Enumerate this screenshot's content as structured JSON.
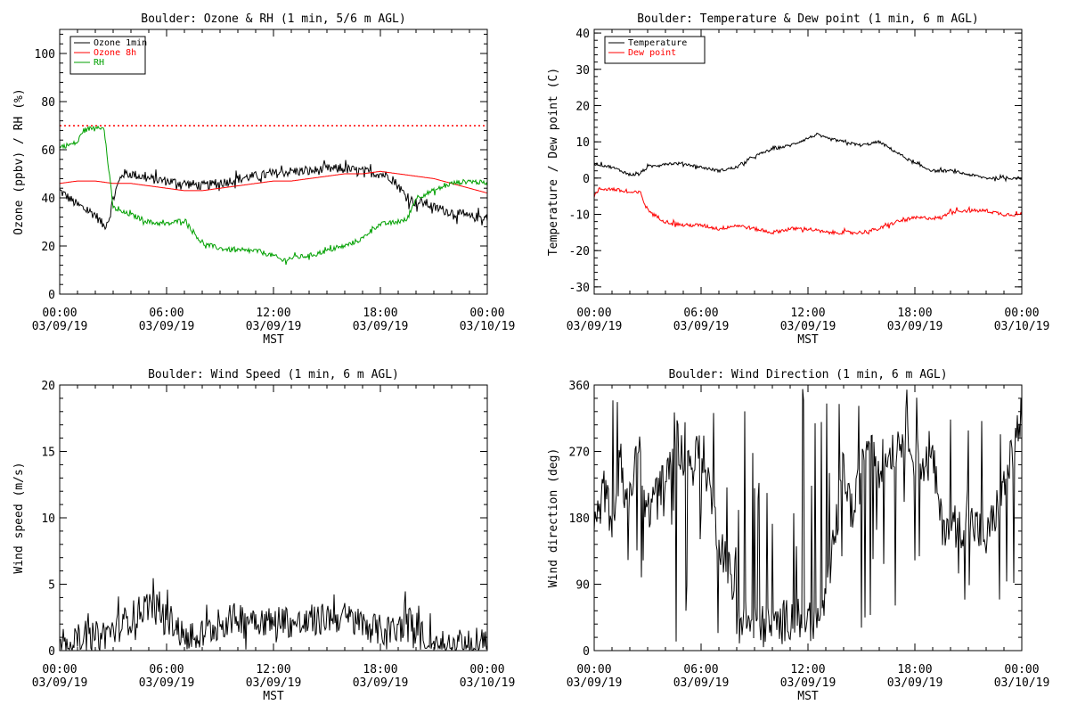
{
  "chart_data": [
    {
      "id": "ozone",
      "type": "line",
      "title": "Boulder: Ozone & RH (1 min, 5/6 m AGL)",
      "xlabel": "MST",
      "ylabel": "Ozone (ppbv) / RH (%)",
      "ylim": [
        0,
        110
      ],
      "yticks": [
        0,
        20,
        40,
        60,
        80,
        100
      ],
      "xticks": [
        {
          "h": 0,
          "time": "00:00",
          "date": "03/09/19"
        },
        {
          "h": 6,
          "time": "06:00",
          "date": "03/09/19"
        },
        {
          "h": 12,
          "time": "12:00",
          "date": "03/09/19"
        },
        {
          "h": 18,
          "time": "18:00",
          "date": "03/09/19"
        },
        {
          "h": 24,
          "time": "00:00",
          "date": "03/10/19"
        }
      ],
      "legend": {
        "placement": "top-left"
      },
      "reference_line": {
        "value": 70,
        "color": "#ff0000",
        "style": "dotted"
      },
      "series": [
        {
          "name": "Ozone 1min",
          "color": "#000000",
          "noise": 2,
          "x": [
            0,
            0.5,
            1,
            1.5,
            2,
            2.5,
            2.8,
            3,
            3.5,
            4,
            5,
            6,
            7,
            8,
            9,
            10,
            11,
            12,
            13,
            14,
            15,
            16,
            17,
            18,
            18.5,
            19,
            19.5,
            20,
            20.5,
            21,
            22,
            23,
            24
          ],
          "y": [
            43,
            40,
            37,
            35,
            33,
            28,
            32,
            40,
            50,
            50,
            48,
            47,
            46,
            45,
            46,
            48,
            49,
            50,
            51,
            51,
            52,
            52,
            51,
            50,
            49,
            45,
            40,
            38,
            38,
            36,
            34,
            32,
            32
          ]
        },
        {
          "name": "Ozone 8h",
          "color": "#ff0000",
          "noise": 0,
          "x": [
            0,
            1,
            2,
            3,
            4,
            5,
            6,
            7,
            8,
            9,
            10,
            11,
            12,
            13,
            14,
            15,
            16,
            17,
            18,
            19,
            20,
            21,
            22,
            23,
            24
          ],
          "y": [
            46,
            47,
            47,
            46,
            46,
            45,
            44,
            43,
            43,
            44,
            45,
            46,
            47,
            47,
            48,
            49,
            50,
            50,
            51,
            50,
            49,
            48,
            46,
            44,
            42
          ]
        },
        {
          "name": "RH",
          "color": "#00a000",
          "noise": 1,
          "x": [
            0,
            0.5,
            1,
            1.3,
            1.8,
            2.2,
            2.5,
            2.7,
            3,
            3.5,
            4,
            5,
            6,
            7,
            7.5,
            8,
            9,
            10,
            11,
            12,
            12.5,
            13,
            14,
            15,
            16,
            17,
            17.5,
            18,
            19,
            19.5,
            20,
            21,
            22,
            23,
            24
          ],
          "y": [
            61,
            62,
            63,
            68,
            69,
            70,
            68,
            55,
            36,
            34,
            33,
            30,
            29,
            31,
            26,
            21,
            19,
            18,
            18,
            16,
            14,
            15,
            16,
            18,
            20,
            23,
            27,
            29,
            30,
            31,
            40,
            43,
            46,
            47,
            46
          ]
        }
      ]
    },
    {
      "id": "temperature",
      "type": "line",
      "title": "Boulder: Temperature & Dew point (1 min, 6 m AGL)",
      "xlabel": "MST",
      "ylabel": "Temperature / Dew point (C)",
      "ylim": [
        -32,
        41
      ],
      "yticks": [
        -30,
        -20,
        -10,
        0,
        10,
        20,
        30,
        40
      ],
      "xticks": [
        {
          "h": 0,
          "time": "00:00",
          "date": "03/09/19"
        },
        {
          "h": 6,
          "time": "06:00",
          "date": "03/09/19"
        },
        {
          "h": 12,
          "time": "12:00",
          "date": "03/09/19"
        },
        {
          "h": 18,
          "time": "18:00",
          "date": "03/09/19"
        },
        {
          "h": 24,
          "time": "00:00",
          "date": "03/10/19"
        }
      ],
      "legend": {
        "placement": "top-left"
      },
      "series": [
        {
          "name": "Temperature",
          "color": "#000000",
          "noise": 0.4,
          "x": [
            0,
            1,
            2,
            2.5,
            3,
            4,
            5,
            6,
            7,
            8,
            9,
            10,
            11,
            12,
            12.5,
            13,
            14,
            15,
            16,
            17,
            18,
            19,
            20,
            21,
            22,
            23,
            24
          ],
          "y": [
            4,
            3,
            1,
            1,
            3,
            4,
            4,
            3,
            2,
            3,
            6,
            8,
            9,
            11,
            12,
            11,
            10,
            9,
            10,
            7,
            4,
            2,
            2,
            1,
            0,
            0,
            0
          ]
        },
        {
          "name": "Dew point",
          "color": "#ff0000",
          "noise": 0.5,
          "x": [
            0,
            0.3,
            1,
            2,
            2.6,
            2.9,
            3.3,
            4,
            5,
            6,
            7,
            8,
            9,
            10,
            11,
            12,
            13,
            14,
            15,
            16,
            17,
            18,
            19,
            19.5,
            20,
            21,
            22,
            23,
            24
          ],
          "y": [
            -5,
            -3,
            -3,
            -4,
            -4,
            -8,
            -10,
            -12,
            -13,
            -13,
            -14,
            -13,
            -14,
            -15,
            -14,
            -14,
            -15,
            -15,
            -15,
            -14,
            -12,
            -11,
            -11,
            -11,
            -9,
            -9,
            -9,
            -10,
            -10
          ]
        }
      ]
    },
    {
      "id": "windspeed",
      "type": "line",
      "title": "Boulder: Wind Speed (1 min, 6 m AGL)",
      "xlabel": "MST",
      "ylabel": "Wind speed (m/s)",
      "ylim": [
        0,
        20
      ],
      "yticks": [
        0,
        5,
        10,
        15,
        20
      ],
      "xticks": [
        {
          "h": 0,
          "time": "00:00",
          "date": "03/09/19"
        },
        {
          "h": 6,
          "time": "06:00",
          "date": "03/09/19"
        },
        {
          "h": 12,
          "time": "12:00",
          "date": "03/09/19"
        },
        {
          "h": 18,
          "time": "18:00",
          "date": "03/09/19"
        },
        {
          "h": 24,
          "time": "00:00",
          "date": "03/10/19"
        }
      ],
      "series": [
        {
          "name": "",
          "color": "#000000",
          "noise": 1.2,
          "min": 0,
          "x": [
            0,
            1,
            2,
            3,
            4,
            4.5,
            5,
            6,
            6.5,
            7,
            8,
            9,
            10,
            11,
            12,
            12.5,
            13,
            14,
            15,
            16,
            17,
            18,
            19,
            19.5,
            20,
            20.5,
            21,
            22,
            23,
            24
          ],
          "y": [
            0.6,
            0.8,
            1,
            1.5,
            2.5,
            3,
            3.5,
            2.5,
            2,
            0.8,
            1.2,
            2,
            2.5,
            2.5,
            2,
            2.5,
            2,
            2,
            2.5,
            2.5,
            2,
            1.5,
            1.5,
            2.5,
            1.5,
            0.7,
            0.5,
            0.4,
            0.4,
            0.6
          ]
        }
      ]
    },
    {
      "id": "winddir",
      "type": "line",
      "title": "Boulder: Wind Direction (1 min, 6 m AGL)",
      "xlabel": "MST",
      "ylabel": "Wind direction (deg)",
      "ylim": [
        0,
        360
      ],
      "yticks": [
        0,
        90,
        180,
        270,
        360
      ],
      "xticks": [
        {
          "h": 0,
          "time": "00:00",
          "date": "03/09/19"
        },
        {
          "h": 6,
          "time": "06:00",
          "date": "03/09/19"
        },
        {
          "h": 12,
          "time": "12:00",
          "date": "03/09/19"
        },
        {
          "h": 18,
          "time": "18:00",
          "date": "03/09/19"
        },
        {
          "h": 24,
          "time": "00:00",
          "date": "03/10/19"
        }
      ],
      "series": [
        {
          "name": "",
          "color": "#000000",
          "noise": 60,
          "min": 0,
          "max": 360,
          "jumpy": true,
          "x": [
            0,
            0.5,
            1,
            1.5,
            2,
            2.5,
            3,
            3.5,
            4,
            4.5,
            5,
            5.5,
            6,
            6.5,
            7,
            7.5,
            8,
            9,
            10,
            11,
            12,
            12.5,
            13,
            13.5,
            14,
            14.5,
            15,
            15.5,
            16,
            16.5,
            17,
            17.5,
            18,
            18.5,
            19,
            19.5,
            20,
            20.5,
            21,
            22,
            23,
            24
          ],
          "y": [
            150,
            220,
            180,
            260,
            200,
            280,
            180,
            230,
            220,
            300,
            260,
            250,
            280,
            220,
            150,
            120,
            40,
            35,
            30,
            45,
            45,
            40,
            60,
            150,
            250,
            180,
            240,
            300,
            250,
            270,
            280,
            300,
            280,
            250,
            260,
            170,
            175,
            165,
            180,
            150,
            220,
            320
          ]
        }
      ]
    }
  ]
}
